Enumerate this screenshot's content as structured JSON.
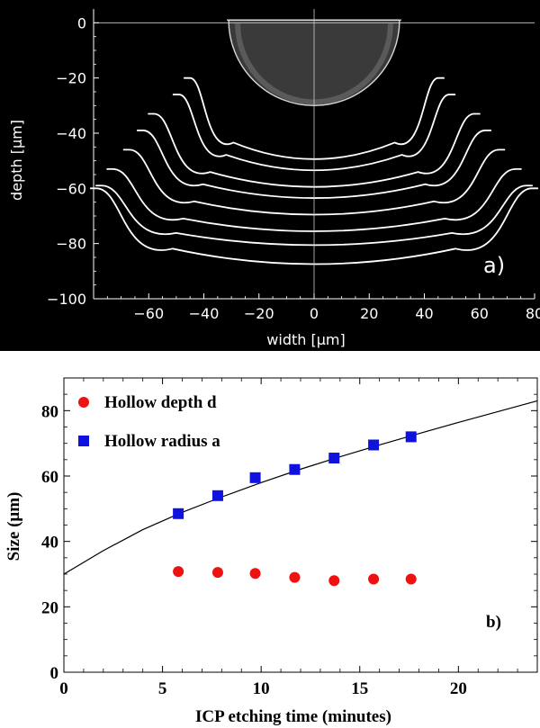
{
  "chart_data": [
    {
      "id": "a",
      "type": "line",
      "panel_label": "a)",
      "title": "",
      "xlabel": "width [μm]",
      "ylabel": "depth [μm]",
      "xlim": [
        -80,
        80
      ],
      "ylim": [
        -100,
        5
      ],
      "xticks": [
        -60,
        -40,
        -20,
        0,
        20,
        40,
        60,
        80
      ],
      "yticks": [
        0,
        -20,
        -40,
        -60,
        -80,
        -100
      ],
      "xtick_labels": [
        "−60",
        "−40",
        "−20",
        "0",
        "20",
        "40",
        "60",
        "80"
      ],
      "ytick_labels": [
        "0",
        "−20",
        "−40",
        "−60",
        "−80",
        "−100"
      ],
      "background": "#000000",
      "foreground": "#ffffff",
      "grid": false,
      "hemisphere_profile": {
        "x_left": -31,
        "x_right": 31,
        "top": 1,
        "bottom": -30
      },
      "etch_profiles": [
        {
          "rim_depth": -20,
          "rim_half_width": 45,
          "bottom_depth": -50
        },
        {
          "rim_depth": -26,
          "rim_half_width": 49,
          "bottom_depth": -54
        },
        {
          "rim_depth": -33,
          "rim_half_width": 58,
          "bottom_depth": -60
        },
        {
          "rim_depth": -39,
          "rim_half_width": 62,
          "bottom_depth": -64
        },
        {
          "rim_depth": -46,
          "rim_half_width": 67,
          "bottom_depth": -70
        },
        {
          "rim_depth": -53,
          "rim_half_width": 73,
          "bottom_depth": -76
        },
        {
          "rim_depth": -59,
          "rim_half_width": 77,
          "bottom_depth": -81
        },
        {
          "rim_depth": -60,
          "rim_half_width": 79,
          "bottom_depth": -88
        }
      ]
    },
    {
      "id": "b",
      "type": "scatter",
      "panel_label": "b)",
      "title": "",
      "xlabel": "ICP etching time (minutes)",
      "ylabel": "Size (μm)",
      "xlim": [
        0,
        24
      ],
      "ylim": [
        0,
        90
      ],
      "xticks": [
        0,
        5,
        10,
        15,
        20
      ],
      "yticks": [
        0,
        20,
        40,
        60,
        80
      ],
      "xtick_labels": [
        "0",
        "5",
        "10",
        "15",
        "20"
      ],
      "ytick_labels": [
        "0",
        "20",
        "40",
        "60",
        "80"
      ],
      "grid": false,
      "legend_position": "top-left",
      "series": [
        {
          "name": "Hollow depth d",
          "marker": "circle",
          "color": "#ee1111",
          "x": [
            5.8,
            7.8,
            9.7,
            11.7,
            13.7,
            15.7,
            17.6
          ],
          "y": [
            30.8,
            30.5,
            30.2,
            29.0,
            28.0,
            28.5,
            28.5
          ]
        },
        {
          "name": "Hollow radius a",
          "marker": "square",
          "color": "#1111dd",
          "x": [
            5.8,
            7.8,
            9.7,
            11.7,
            13.7,
            15.7,
            17.6
          ],
          "y": [
            48.5,
            54.0,
            59.5,
            62.0,
            65.5,
            69.5,
            72.0
          ]
        },
        {
          "marker": "line",
          "color": "#000000",
          "x": [
            0,
            2,
            4,
            6,
            8,
            10,
            12,
            14,
            16,
            18,
            20,
            22,
            24
          ],
          "y": [
            30.0,
            37.2,
            43.6,
            48.9,
            53.6,
            58.0,
            62.1,
            65.9,
            69.5,
            73.0,
            76.4,
            79.7,
            83.0
          ]
        }
      ]
    }
  ]
}
